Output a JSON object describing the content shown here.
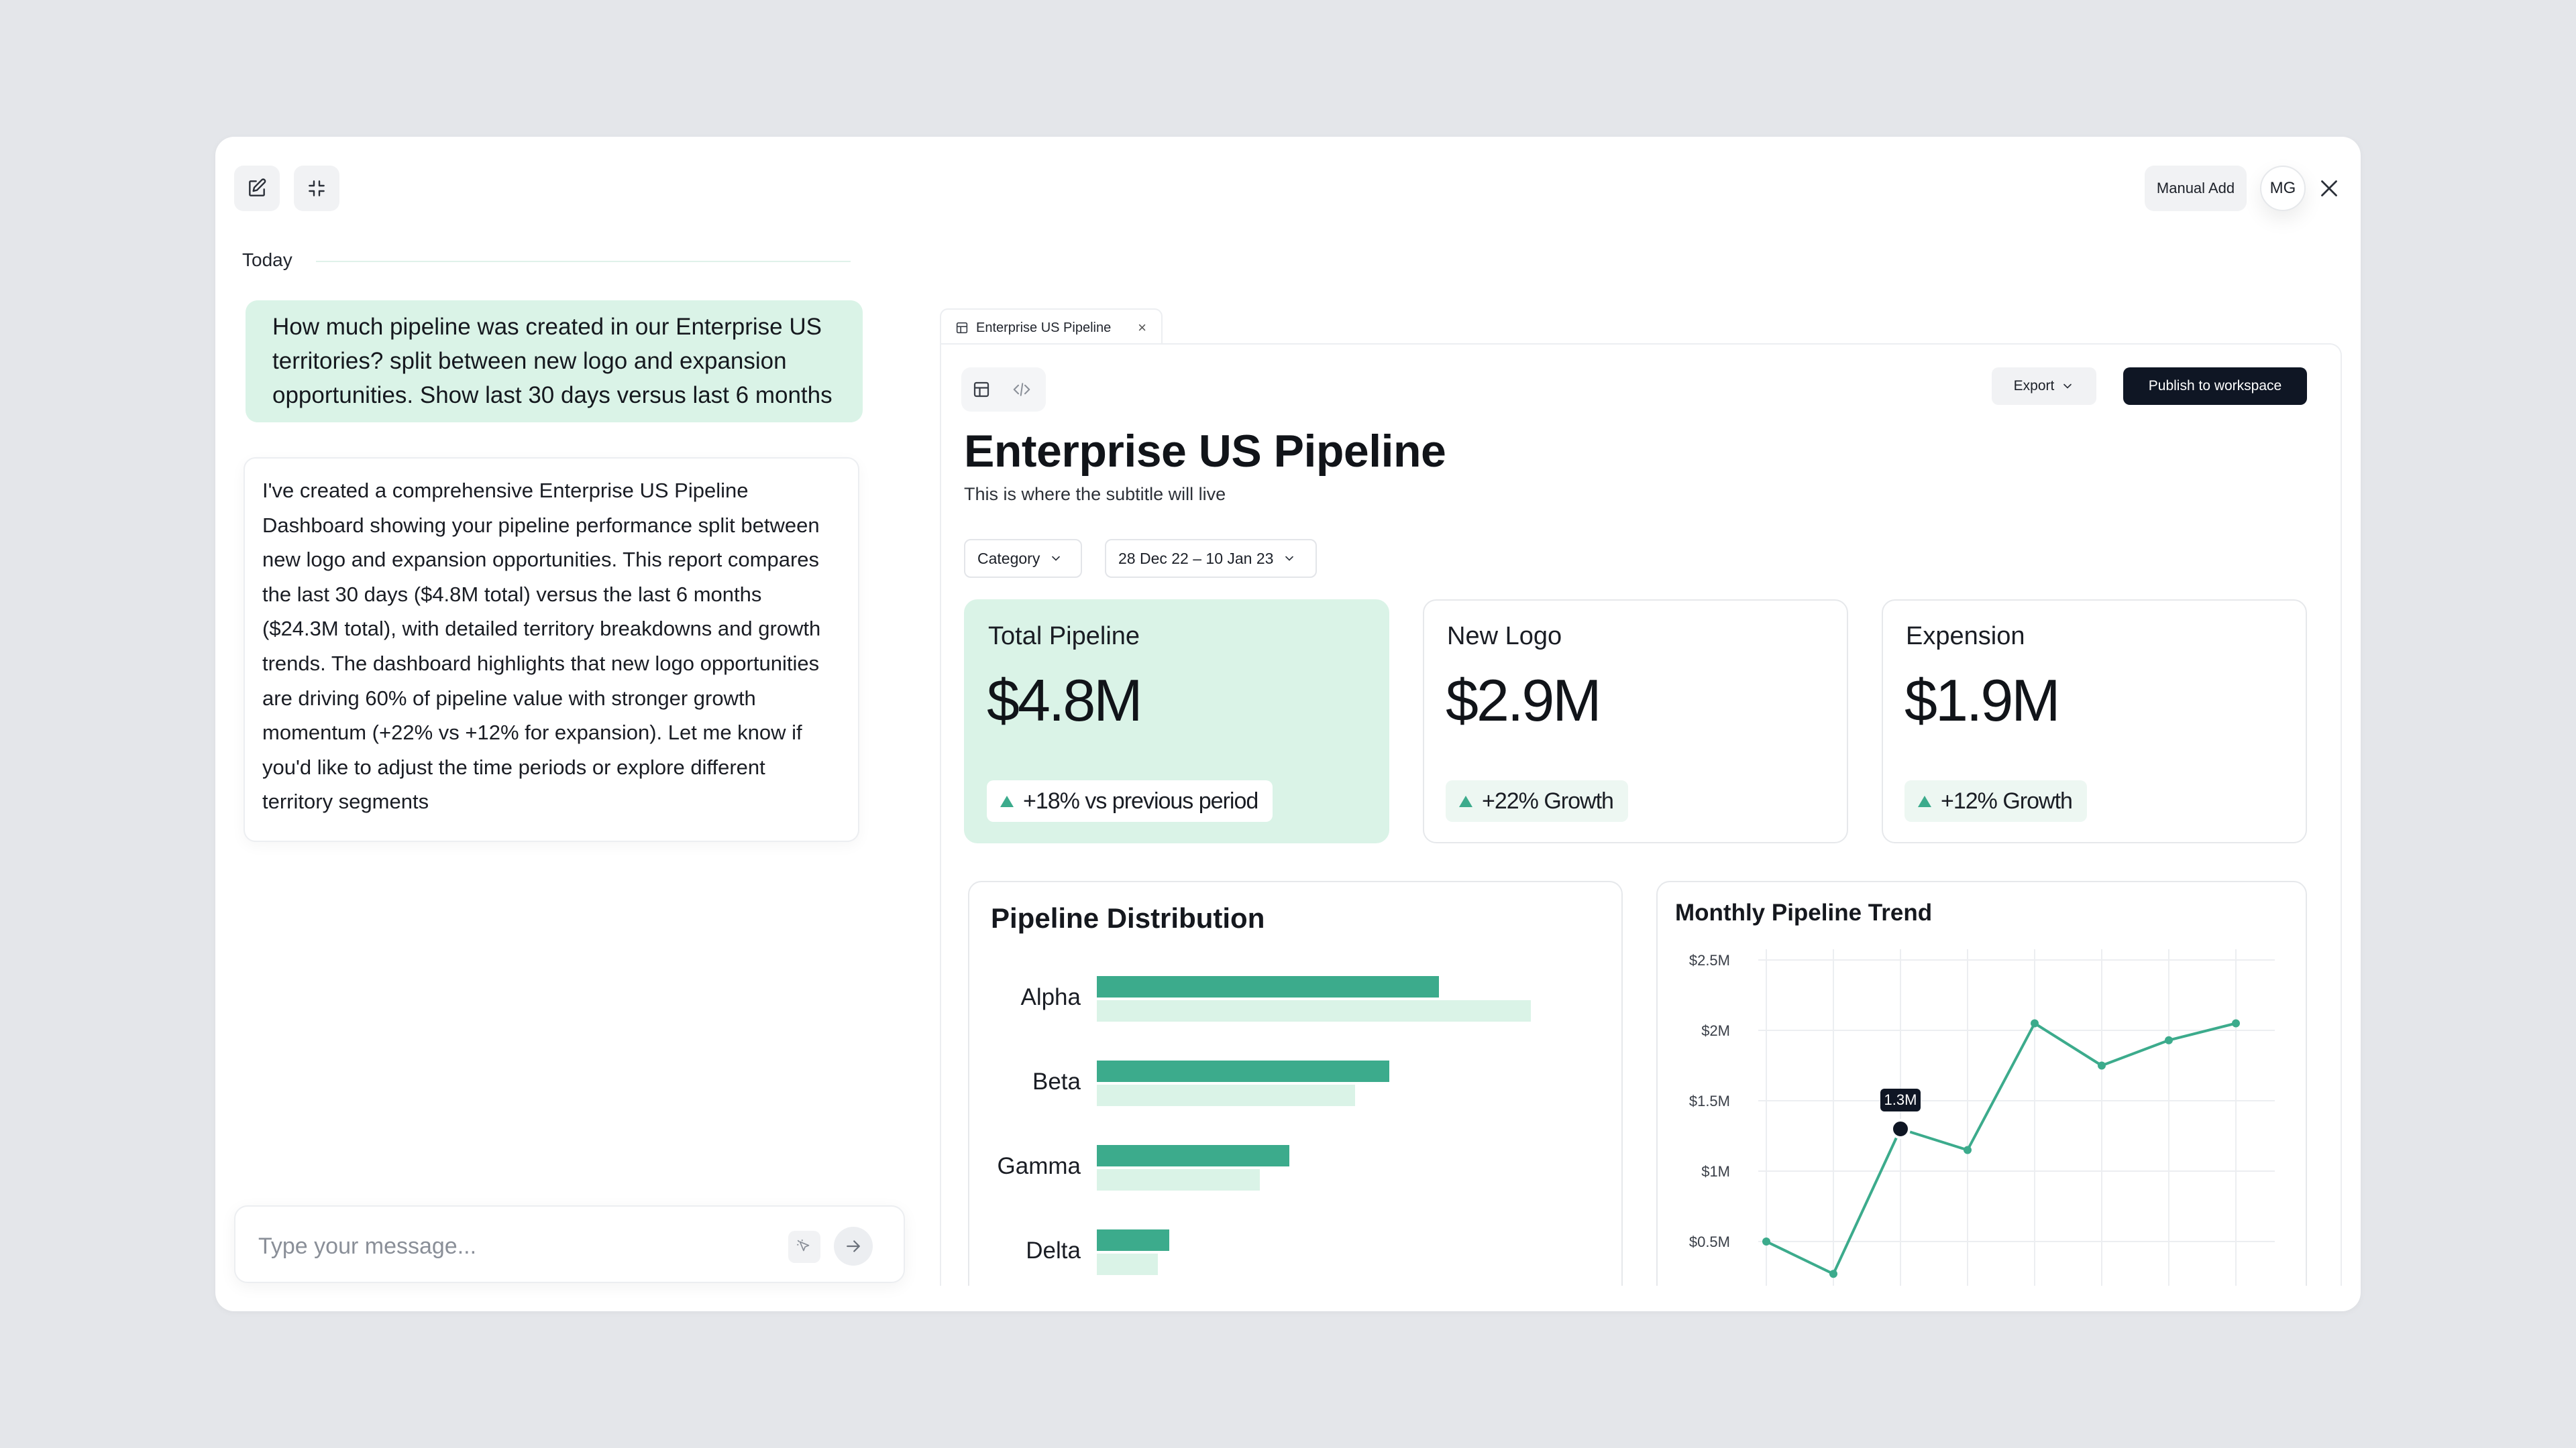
{
  "toolbar": {
    "manual_add": "Manual Add",
    "avatar_initials": "MG"
  },
  "chat": {
    "date_divider": "Today",
    "user_message": "How much pipeline was created in our Enterprise US territories? split between new logo and expansion opportunities. Show last 30 days versus last 6 months",
    "ai_message": "I've created a comprehensive Enterprise US Pipeline Dashboard showing your pipeline performance split between new logo and expansion opportunities. This report compares the last 30 days ($4.8M total) versus the last 6 months ($24.3M total), with detailed territory breakdowns and growth trends. The dashboard highlights that new logo opportunities are driving 60% of pipeline value with stronger growth momentum (+22% vs +12% for expansion). Let me know if you'd like to adjust the time periods or explore different territory segments",
    "input_placeholder": "Type your message..."
  },
  "dashboard": {
    "tab_label": "Enterprise US Pipeline",
    "tab_close": "×",
    "export_label": "Export",
    "publish_label": "Publish to workspace",
    "title": "Enterprise US Pipeline",
    "subtitle": "This is where the subtitle will live",
    "filters": {
      "category": "Category",
      "date_range": "28 Dec 22 – 10 Jan 23"
    },
    "kpis": [
      {
        "label": "Total Pipeline",
        "value": "$4.8M",
        "badge": "+18% vs previous period"
      },
      {
        "label": "New Logo",
        "value": "$2.9M",
        "badge": "+22% Growth"
      },
      {
        "label": "Expension",
        "value": "$1.9M",
        "badge": "+12% Growth"
      }
    ],
    "colors": {
      "accent": "#3cab8c",
      "accent_light": "#daf3e7",
      "primary_button": "#0f1624"
    }
  },
  "chart_data": [
    {
      "type": "bar",
      "title": "Pipeline Distribution",
      "orientation": "horizontal",
      "categories": [
        "Alpha",
        "Beta",
        "Gamma",
        "Delta"
      ],
      "series": [
        {
          "values": [
            208,
            178,
            117,
            44
          ],
          "color": "#3cab8c"
        },
        {
          "values": [
            264,
            157,
            99,
            37
          ],
          "color": "#daf3e7"
        }
      ],
      "xlim": [
        0,
        300
      ]
    },
    {
      "type": "line",
      "title": "Monthly Pipeline Trend",
      "y_ticks": [
        "$2.5M",
        "$2M",
        "$1.5M",
        "$1M",
        "$0.5M"
      ],
      "ylim": [
        0.5,
        2.5
      ],
      "x": [
        1,
        2,
        3,
        4,
        5,
        6,
        7,
        8
      ],
      "values": [
        0.5,
        0.27,
        1.3,
        1.15,
        2.05,
        1.75,
        1.93,
        2.05
      ],
      "highlight": {
        "index": 2,
        "label": "1.3M"
      },
      "grid": true,
      "color": "#3cab8c"
    }
  ]
}
